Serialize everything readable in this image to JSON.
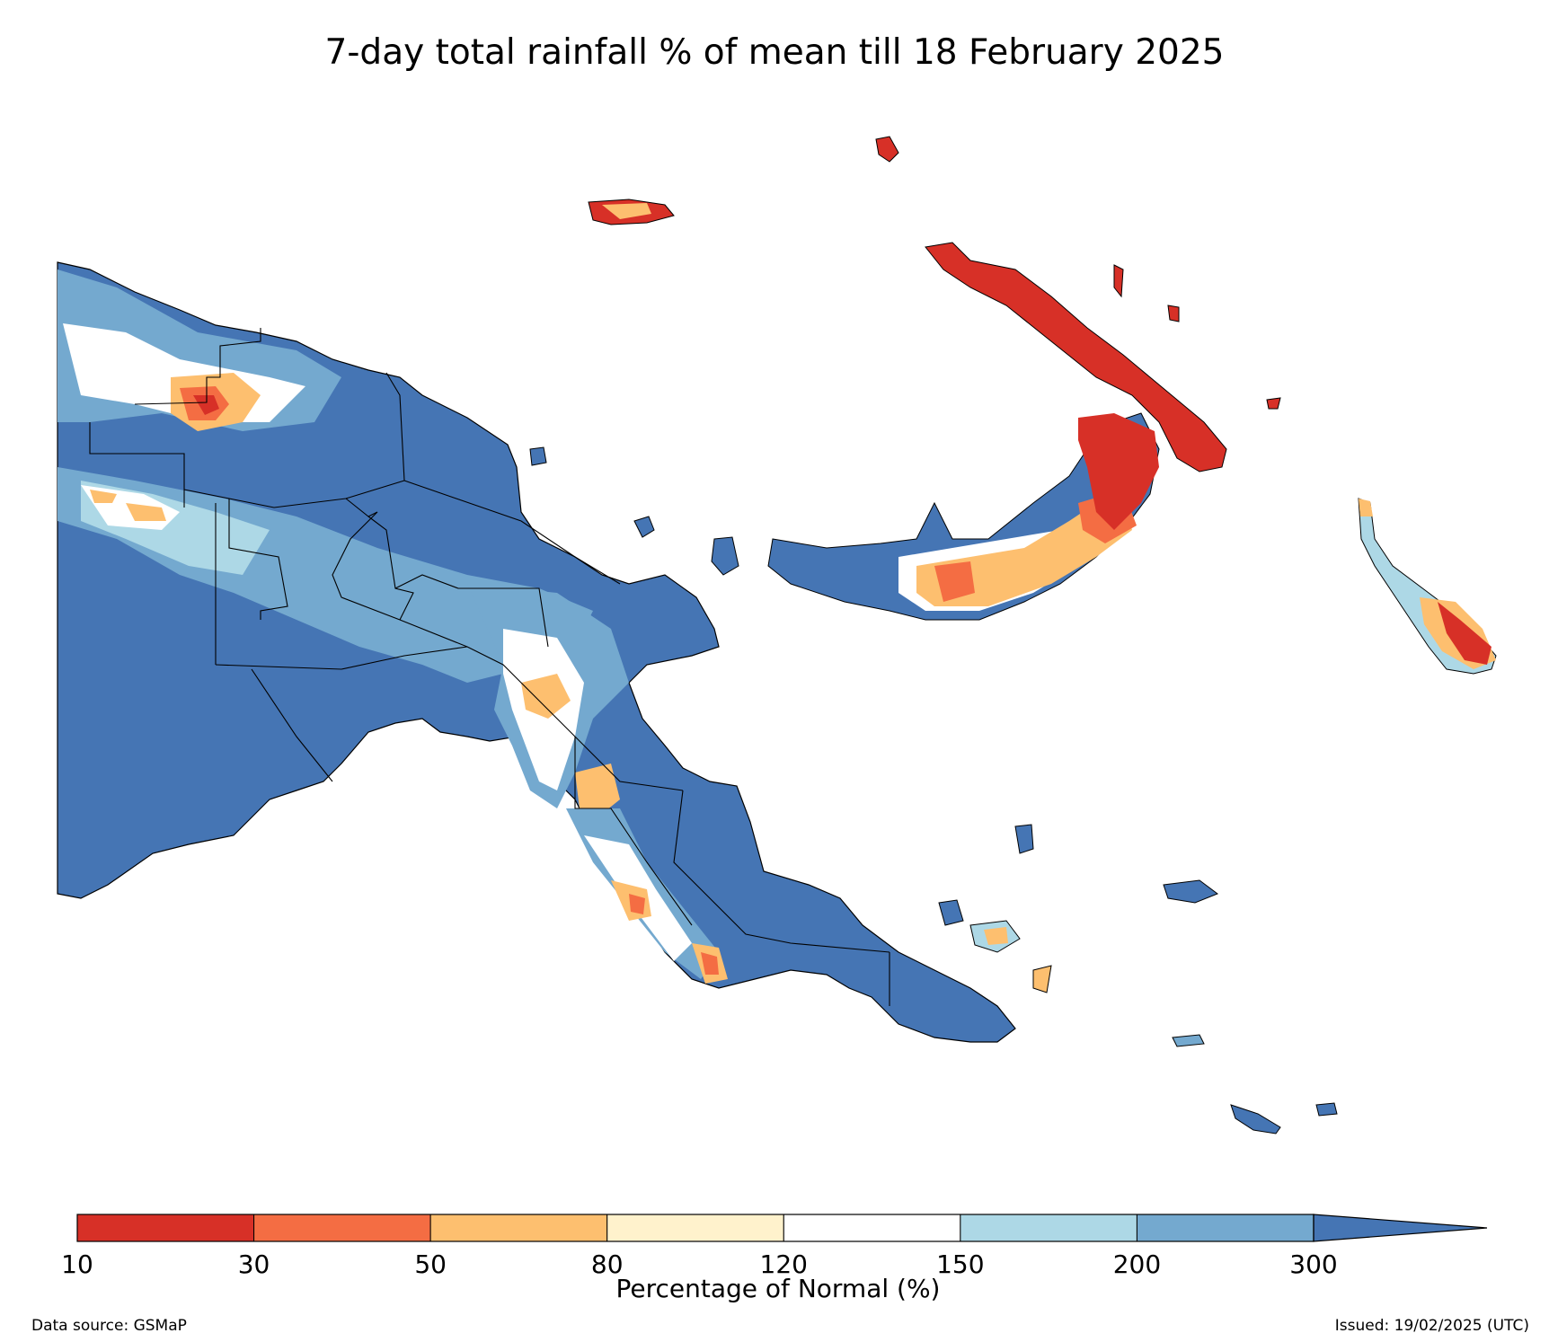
{
  "title": "7-day total rainfall % of mean till 18 February 2025",
  "colorbar": {
    "label": "Percentage of Normal (%)",
    "ticks": [
      "10",
      "30",
      "50",
      "80",
      "120",
      "150",
      "200",
      "300"
    ],
    "colors": [
      "#d73027",
      "#f46d43",
      "#fdbf6f",
      "#fff2cc",
      "#ffffff",
      "#add8e6",
      "#74a9cf",
      "#4575b4"
    ],
    "extend": "max"
  },
  "footer": {
    "source": "Data source: GSMaP",
    "issued": "Issued: 19/02/2025 (UTC)"
  }
}
